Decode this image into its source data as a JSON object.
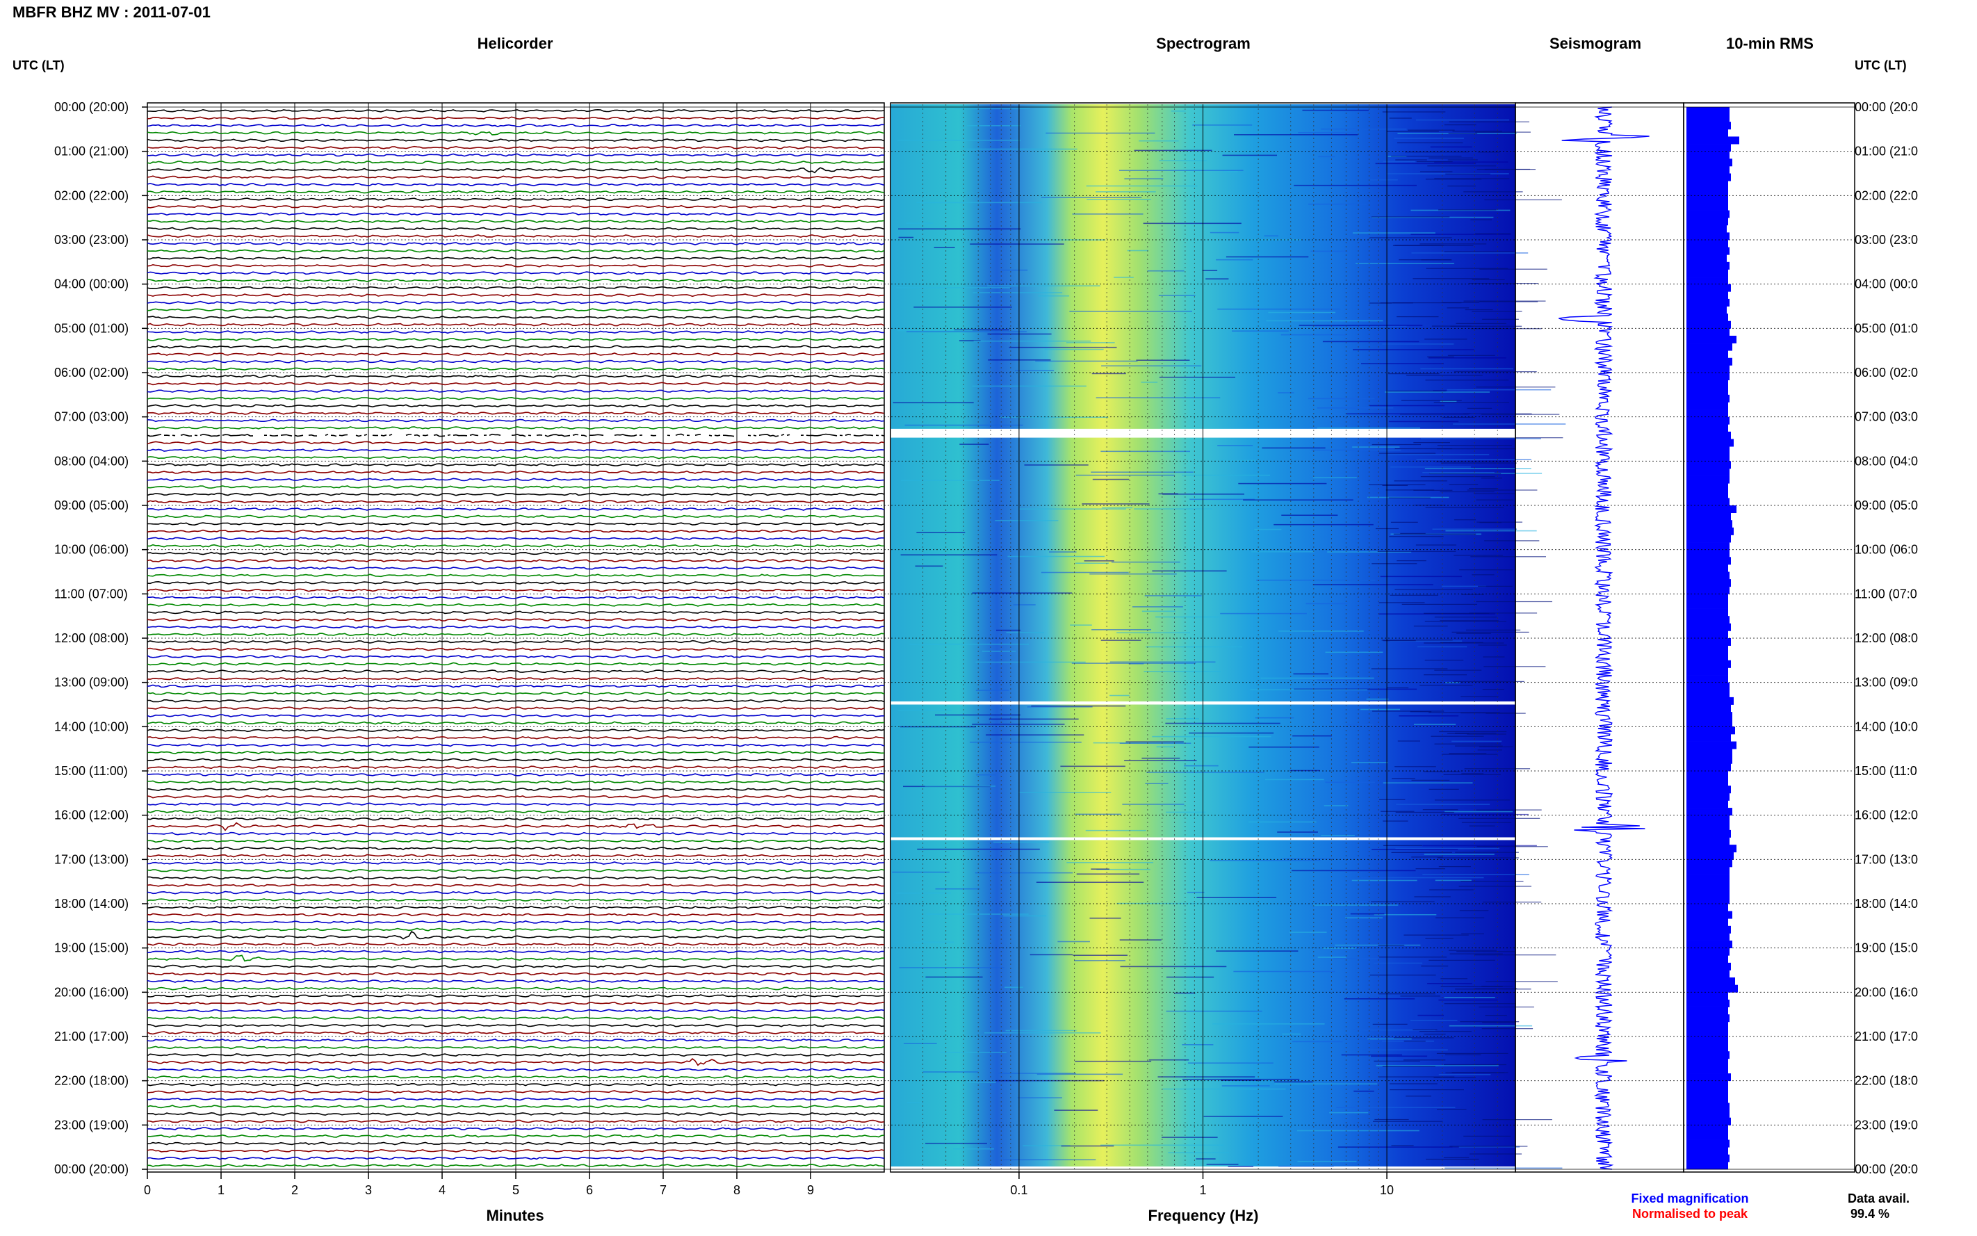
{
  "header": {
    "title": "MBFR BHZ MV : 2011-07-01"
  },
  "panels": {
    "helicorder": "Helicorder",
    "spectrogram": "Spectrogram",
    "seismogram": "Seismogram",
    "rms": "10-min RMS"
  },
  "axes": {
    "left_header": "UTC (LT)",
    "right_header": "UTC (LT)",
    "minutes_label": "Minutes",
    "frequency_label": "Frequency (Hz)",
    "minutes_ticks": [
      "0",
      "1",
      "2",
      "3",
      "4",
      "5",
      "6",
      "7",
      "8",
      "9"
    ],
    "frequency_ticks": [
      "0.1",
      "1",
      "10"
    ],
    "time_labels": [
      "00:00 (20:00)",
      "01:00 (21:00)",
      "02:00 (22:00)",
      "03:00 (23:00)",
      "04:00 (00:00)",
      "05:00 (01:00)",
      "06:00 (02:00)",
      "07:00 (03:00)",
      "08:00 (04:00)",
      "09:00 (05:00)",
      "10:00 (06:00)",
      "11:00 (07:00)",
      "12:00 (08:00)",
      "13:00 (09:00)",
      "14:00 (10:00)",
      "15:00 (11:00)",
      "16:00 (12:00)",
      "17:00 (13:00)",
      "18:00 (14:00)",
      "19:00 (15:00)",
      "20:00 (16:00)",
      "21:00 (17:00)",
      "22:00 (18:00)",
      "23:00 (19:00)",
      "00:00 (20:00)"
    ],
    "right_time_labels": [
      "00:00 (20:0",
      "01:00 (21:0",
      "02:00 (22:0",
      "03:00 (23:0",
      "04:00 (00:0",
      "05:00 (01:0",
      "06:00 (02:0",
      "07:00 (03:0",
      "08:00 (04:0",
      "09:00 (05:0",
      "10:00 (06:0",
      "11:00 (07:0",
      "12:00 (08:0",
      "13:00 (09:0",
      "14:00 (10:0",
      "15:00 (11:0",
      "16:00 (12:0",
      "17:00 (13:0",
      "18:00 (14:0",
      "19:00 (15:0",
      "20:00 (16:0",
      "21:00 (17:0",
      "22:00 (18:0",
      "23:00 (19:0",
      "00:00 (20:0"
    ]
  },
  "legend": {
    "fixed": "Fixed magnification",
    "normalised": "Normalised to peak",
    "fixed_color": "#0000ff",
    "normalised_color": "#ff0000"
  },
  "footer": {
    "data_avail_label": "Data avail.",
    "data_avail_value": "99.4 %"
  },
  "colors": {
    "trace_cycle": [
      "#000000",
      "#8b0000",
      "#0000cc",
      "#008800"
    ],
    "rms_bar": "#0000ff",
    "seismogram": "#0000ff",
    "spectrogram_scale": [
      "#0000a0",
      "#1560e0",
      "#28b4e0",
      "#9ee070",
      "#e8f060"
    ]
  },
  "chart_data": [
    {
      "type": "line",
      "panel": "Helicorder",
      "xlabel": "Minutes",
      "xlim": [
        0,
        10
      ],
      "ylim_hours_utc": [
        0,
        24
      ],
      "row_minutes": 10,
      "rows": 144,
      "gaps_hours_utc": [
        [
          7.2,
          7.4
        ]
      ],
      "events": [
        {
          "hour": 0.5,
          "minute": 4.6
        },
        {
          "hour": 1.3,
          "minute": 9.1
        },
        {
          "hour": 16.2,
          "minute": 6.7
        },
        {
          "hour": 16.2,
          "minute": 1.1
        },
        {
          "hour": 18.7,
          "minute": 3.6
        },
        {
          "hour": 19.2,
          "minute": 1.3
        },
        {
          "hour": 21.5,
          "minute": 7.5
        }
      ]
    },
    {
      "type": "heatmap",
      "panel": "Spectrogram",
      "xlabel": "Frequency (Hz)",
      "xscale": "log",
      "xlim": [
        0.02,
        50
      ],
      "ylim_hours_utc": [
        0,
        24
      ],
      "gaps_hours_utc": [
        [
          7.27,
          7.47
        ],
        [
          13.43,
          13.5
        ],
        [
          16.5,
          16.55
        ]
      ],
      "peak_band_hz": [
        0.2,
        0.6
      ]
    },
    {
      "type": "line",
      "panel": "Seismogram",
      "ylim_hours_utc": [
        0,
        24
      ],
      "spikes_hours_utc": [
        0.7,
        4.8,
        16.3,
        21.5
      ]
    },
    {
      "type": "bar",
      "panel": "10-min RMS",
      "ylim_hours_utc": [
        0,
        24
      ],
      "values": [
        0.62,
        0.62,
        0.64,
        0.6,
        0.76,
        0.64,
        0.62,
        0.66,
        0.62,
        0.64,
        0.6,
        0.6,
        0.6,
        0.6,
        0.62,
        0.6,
        0.58,
        0.62,
        0.6,
        0.62,
        0.58,
        0.62,
        0.6,
        0.6,
        0.64,
        0.6,
        0.62,
        0.58,
        0.6,
        0.64,
        0.62,
        0.72,
        0.66,
        0.6,
        0.66,
        0.62,
        0.62,
        0.6,
        0.6,
        0.62,
        0.6,
        0.6,
        0.62,
        0.6,
        0.64,
        0.68,
        0.62,
        0.62,
        0.64,
        0.62,
        0.62,
        0.6,
        0.6,
        0.62,
        0.72,
        0.64,
        0.66,
        0.68,
        0.64,
        0.62,
        0.62,
        0.64,
        0.6,
        0.62,
        0.64,
        0.62,
        0.6,
        0.6,
        0.6,
        0.62,
        0.64,
        0.6,
        0.64,
        0.6,
        0.6,
        0.64,
        0.6,
        0.6,
        0.62,
        0.62,
        0.68,
        0.64,
        0.66,
        0.66,
        0.7,
        0.64,
        0.72,
        0.66,
        0.66,
        0.64,
        0.6,
        0.6,
        0.64,
        0.62,
        0.6,
        0.66,
        0.62,
        0.62,
        0.64,
        0.62,
        0.72,
        0.68,
        0.66,
        0.62,
        0.62,
        0.62,
        0.62,
        0.62,
        0.6,
        0.66,
        0.6,
        0.64,
        0.62,
        0.66,
        0.62,
        0.6,
        0.64,
        0.62,
        0.7,
        0.74,
        0.6,
        0.62,
        0.6,
        0.62,
        0.6,
        0.6,
        0.6,
        0.6,
        0.62,
        0.6,
        0.6,
        0.64,
        0.6,
        0.6,
        0.6,
        0.62,
        0.62,
        0.64,
        0.6,
        0.6,
        0.62,
        0.6,
        0.62,
        0.6
      ]
    }
  ]
}
